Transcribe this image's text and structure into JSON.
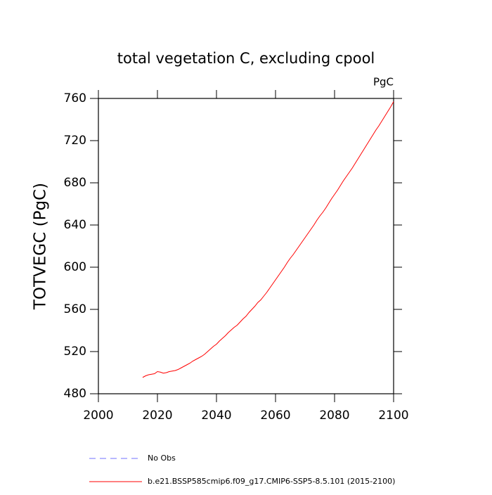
{
  "chart_data": {
    "type": "line",
    "title": "total vegetation C, excluding cpool",
    "units": "PgC",
    "y_label": "TOTVEGC  (PgC)",
    "x": [
      2015,
      2016,
      2017,
      2018,
      2019,
      2020,
      2021,
      2022,
      2023,
      2024,
      2025,
      2026,
      2027,
      2028,
      2029,
      2030,
      2031,
      2032,
      2033,
      2034,
      2035,
      2036,
      2037,
      2038,
      2039,
      2040,
      2041,
      2042,
      2043,
      2044,
      2045,
      2046,
      2047,
      2048,
      2049,
      2050,
      2051,
      2052,
      2053,
      2054,
      2055,
      2056,
      2057,
      2058,
      2059,
      2060,
      2061,
      2062,
      2063,
      2064,
      2065,
      2066,
      2067,
      2068,
      2069,
      2070,
      2071,
      2072,
      2073,
      2074,
      2075,
      2076,
      2077,
      2078,
      2079,
      2080,
      2081,
      2082,
      2083,
      2084,
      2085,
      2086,
      2087,
      2088,
      2089,
      2090,
      2091,
      2092,
      2093,
      2094,
      2095,
      2096,
      2097,
      2098,
      2099,
      2100
    ],
    "series": [
      {
        "name": "No Obs",
        "color": "#7070ff",
        "dashed": true,
        "values": [
          null,
          null,
          null,
          null,
          null,
          null,
          null,
          null,
          null,
          null,
          null,
          null,
          null,
          null,
          null,
          null,
          null,
          null,
          null,
          null,
          null,
          null,
          null,
          null,
          null,
          null,
          null,
          null,
          null,
          null,
          null,
          null,
          null,
          null,
          null,
          null,
          null,
          null,
          null,
          null,
          null,
          null,
          null,
          null,
          null,
          null,
          null,
          null,
          null,
          null,
          null,
          null,
          null,
          null,
          null,
          null,
          null,
          null,
          null,
          null,
          null,
          null,
          null,
          null,
          null,
          null,
          null,
          null,
          null,
          null,
          null,
          null,
          null,
          null,
          null,
          null,
          null,
          null,
          null,
          null,
          null,
          null,
          null,
          null,
          null,
          null
        ]
      },
      {
        "name": "b.e21.BSSP585cmip6.f09_g17.CMIP6-SSP5-8.5.101 (2015-2100)",
        "color": "#ff0000",
        "dashed": false,
        "values": [
          495.5,
          497,
          498,
          498.5,
          499,
          501,
          500.5,
          499.5,
          500,
          501,
          501.5,
          502,
          503,
          504.5,
          506,
          507.5,
          509,
          511,
          512.5,
          514,
          515.5,
          517.5,
          520,
          522.5,
          525,
          527,
          530,
          532.5,
          535,
          538,
          540.5,
          543,
          545,
          548,
          551,
          553.5,
          557,
          560,
          563,
          566.5,
          569,
          572.5,
          576,
          580,
          584,
          588,
          592,
          596,
          600,
          604.5,
          608.5,
          612,
          616,
          620,
          624,
          628,
          632,
          636,
          640,
          644.5,
          648.5,
          652,
          656,
          660.5,
          665,
          669,
          673,
          677.5,
          682,
          686,
          690,
          694,
          698.5,
          703,
          707.5,
          712,
          716.5,
          721,
          725.5,
          730,
          734,
          738.5,
          743,
          747.5,
          752,
          757
        ]
      }
    ],
    "xlim": [
      2000,
      2100
    ],
    "xticks": [
      2000,
      2020,
      2040,
      2060,
      2080,
      2100
    ],
    "ylim": [
      480,
      760
    ],
    "yticks": [
      480,
      520,
      560,
      600,
      640,
      680,
      720,
      760
    ]
  }
}
